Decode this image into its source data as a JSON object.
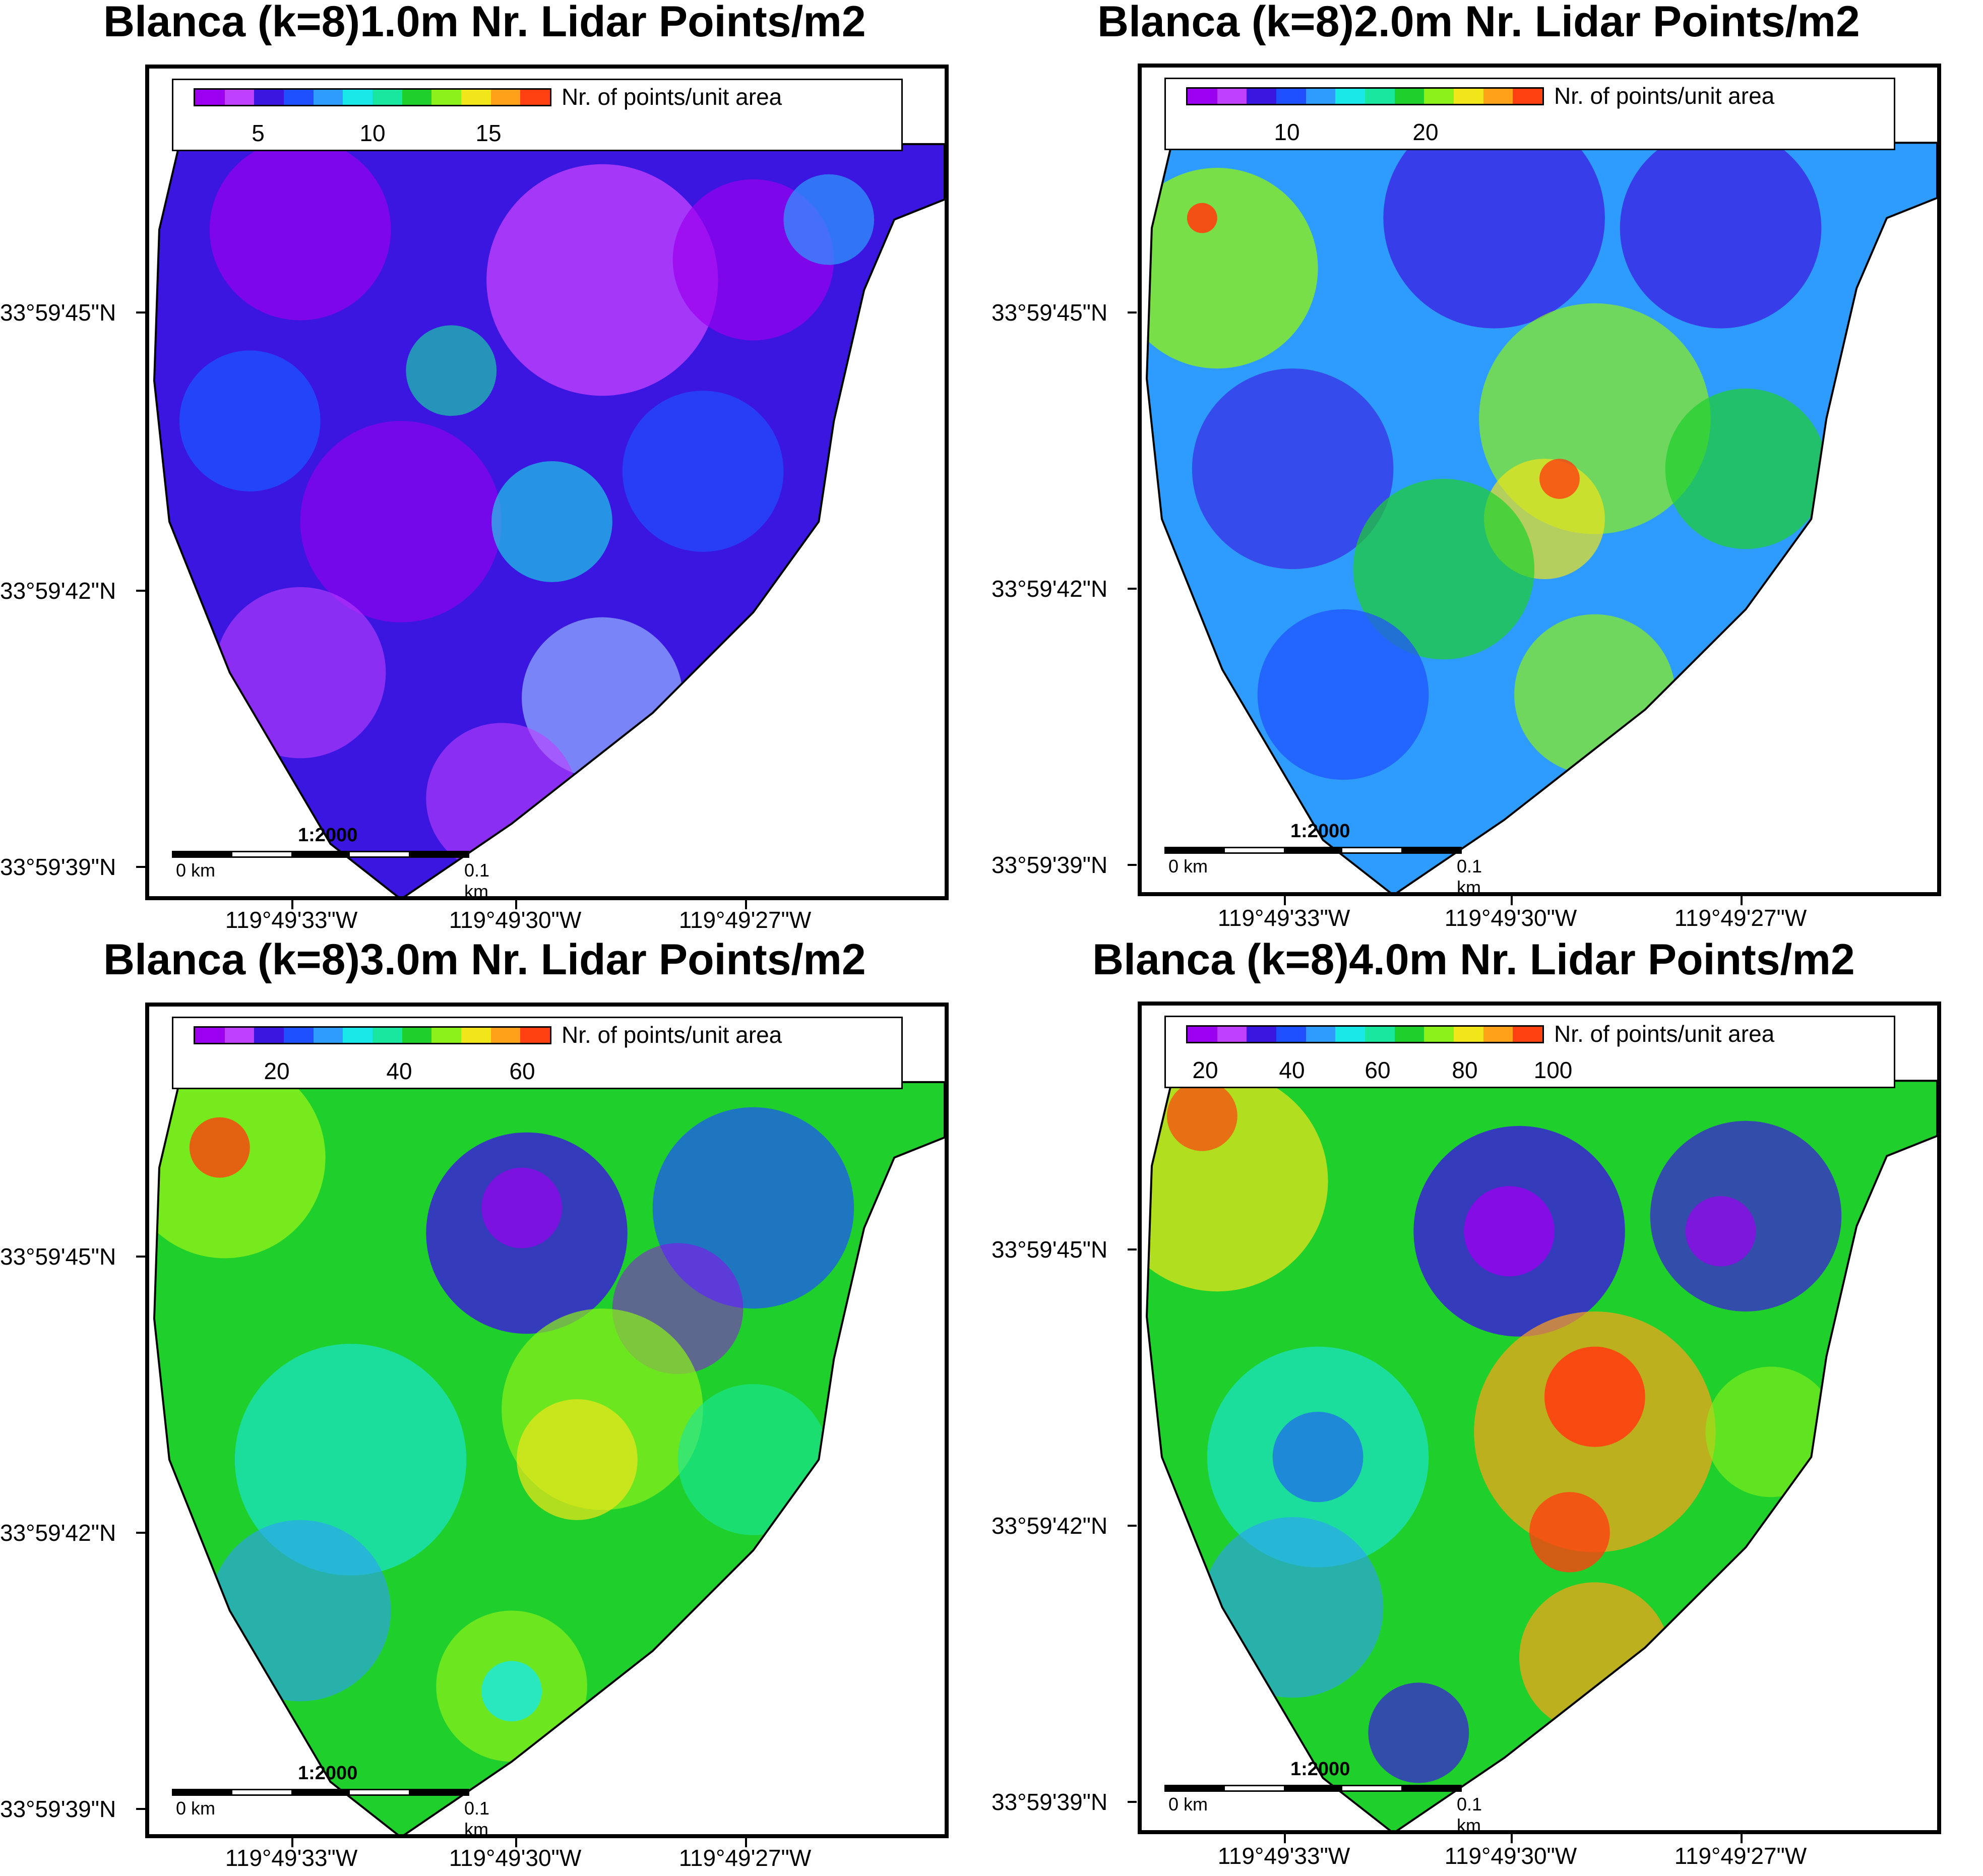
{
  "colors": {
    "palette": [
      "#9b00f0",
      "#c040ff",
      "#3a16e0",
      "#1f50ff",
      "#2e9cff",
      "#19e8e8",
      "#19e7a0",
      "#1fd02c",
      "#8cf01a",
      "#f0e61a",
      "#ffa21a",
      "#ff4010"
    ]
  },
  "scale": {
    "ratio": "1:2000",
    "left_label": "0 km",
    "right_label": "0.1 km"
  },
  "panels": [
    {
      "title": "Blanca (k=8)1.0m Nr. Lidar Points/m2",
      "legend_label": "Nr. of points/unit area",
      "cbar_ticks": [
        "5",
        "10",
        "15"
      ],
      "y_ticks": [
        "33°59'45\"N",
        "33°59'42\"N",
        "33°59'39\"N"
      ],
      "x_ticks": [
        "119°49'33\"W",
        "119°49'30\"W",
        "119°49'27\"W"
      ]
    },
    {
      "title": "Blanca (k=8)2.0m Nr. Lidar Points/m2",
      "legend_label": "Nr. of points/unit area",
      "cbar_ticks": [
        "10",
        "20"
      ],
      "y_ticks": [
        "33°59'45\"N",
        "33°59'42\"N",
        "33°59'39\"N"
      ],
      "x_ticks": [
        "119°49'33\"W",
        "119°49'30\"W",
        "119°49'27\"W"
      ]
    },
    {
      "title": "Blanca (k=8)3.0m Nr. Lidar Points/m2",
      "legend_label": "Nr. of points/unit area",
      "cbar_ticks": [
        "20",
        "40",
        "60"
      ],
      "y_ticks": [
        "33°59'45\"N",
        "33°59'42\"N",
        "33°59'39\"N"
      ],
      "x_ticks": [
        "119°49'33\"W",
        "119°49'30\"W",
        "119°49'27\"W"
      ]
    },
    {
      "title": "Blanca (k=8)4.0m Nr. Lidar Points/m2",
      "legend_label": "Nr. of points/unit area",
      "cbar_ticks": [
        "20",
        "40",
        "60",
        "80",
        "100"
      ],
      "y_ticks": [
        "33°59'45\"N",
        "33°59'42\"N",
        "33°59'39\"N"
      ],
      "x_ticks": [
        "119°49'33\"W",
        "119°49'30\"W",
        "119°49'27\"W"
      ]
    }
  ]
}
